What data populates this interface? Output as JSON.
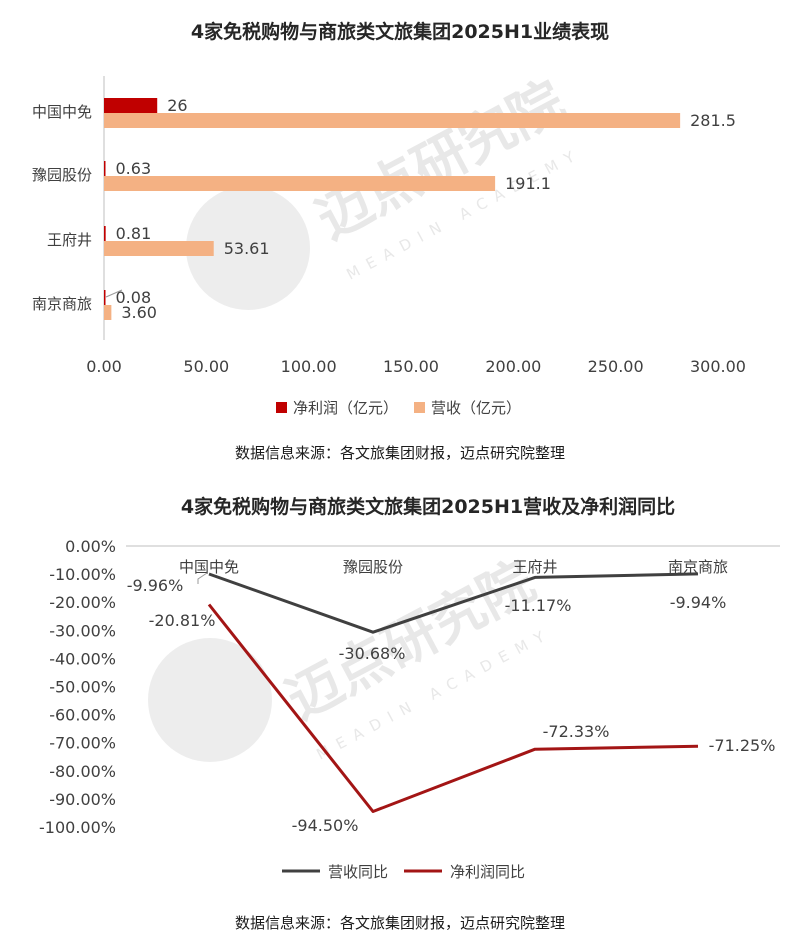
{
  "colors": {
    "profit": "#c00000",
    "revenue": "#f4b183",
    "revenue_line": "#404040",
    "profit_line": "#a31515",
    "axis": "#bfbfbf",
    "watermark": "#e8e8e8"
  },
  "watermark": {
    "main": "迈点研究院",
    "sub": "MEADIN ACADEMY"
  },
  "chart_data": [
    {
      "type": "bar",
      "orientation": "horizontal",
      "title": "4家免税购物与商旅类文旅集团2025H1业绩表现",
      "categories": [
        "中国中免",
        "豫园股份",
        "王府井",
        "南京商旅"
      ],
      "series": [
        {
          "name": "净利润（亿元）",
          "values": [
            26,
            0.63,
            0.81,
            0.08
          ],
          "labels": [
            "26",
            "0.63",
            "0.81",
            "0.08"
          ]
        },
        {
          "name": "营收（亿元）",
          "values": [
            281.5,
            191.1,
            53.61,
            3.6
          ],
          "labels": [
            "281.5",
            "191.1",
            "53.61",
            "3.60"
          ]
        }
      ],
      "xlim": [
        0,
        300
      ],
      "x_ticks": [
        "0.00",
        "50.00",
        "100.00",
        "150.00",
        "200.00",
        "250.00",
        "300.00"
      ],
      "legend_position": "bottom",
      "grid": false,
      "source": "数据信息来源：各文旅集团财报，迈点研究院整理"
    },
    {
      "type": "line",
      "title": "4家免税购物与商旅类文旅集团2025H1营收及净利润同比",
      "categories": [
        "中国中免",
        "豫园股份",
        "王府井",
        "南京商旅"
      ],
      "series": [
        {
          "name": "营收同比",
          "values": [
            -9.96,
            -30.68,
            -11.17,
            -9.94
          ],
          "labels": [
            "-9.96%",
            "-30.68%",
            "-11.17%",
            "-9.94%"
          ]
        },
        {
          "name": "净利润同比",
          "values": [
            -20.81,
            -94.5,
            -72.33,
            -71.25
          ],
          "labels": [
            "-20.81%",
            "-94.50%",
            "-72.33%",
            "-71.25%"
          ]
        }
      ],
      "ylim": [
        -100,
        0
      ],
      "y_ticks": [
        "0.00%",
        "-10.00%",
        "-20.00%",
        "-30.00%",
        "-40.00%",
        "-50.00%",
        "-60.00%",
        "-70.00%",
        "-80.00%",
        "-90.00%",
        "-100.00%"
      ],
      "legend_position": "bottom",
      "grid": false,
      "source": "数据信息来源：各文旅集团财报，迈点研究院整理"
    }
  ]
}
